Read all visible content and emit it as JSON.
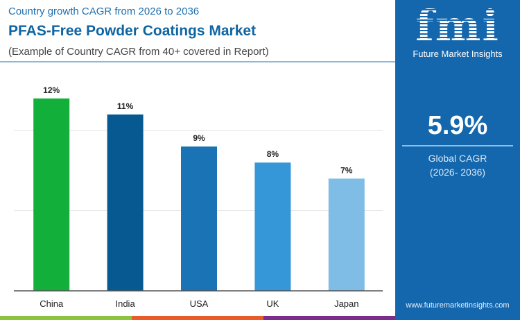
{
  "header": {
    "subtitle": "Country growth CAGR from 2026 to 2036",
    "title": "PFAS-Free Powder Coatings Market",
    "note": "(Example of Country CAGR from 40+ covered in Report)"
  },
  "panel": {
    "logo_text": "fmi",
    "brand": "Future Market Insights",
    "global_value": "5.9%",
    "global_label": "Global CAGR",
    "global_period": "(2026- 2036)",
    "url": "www.futuremarketinsights.com",
    "background": "#1467ad"
  },
  "chart_data": {
    "type": "bar",
    "categories": [
      "China",
      "India",
      "USA",
      "UK",
      "Japan"
    ],
    "values": [
      12,
      11,
      9,
      8,
      7
    ],
    "labels": [
      "12%",
      "11%",
      "9%",
      "8%",
      "7%"
    ],
    "colors": [
      "#12b03a",
      "#065a91",
      "#1a73b4",
      "#3597d8",
      "#7fbde6"
    ],
    "ylim": [
      0,
      14
    ],
    "grid": true,
    "gridlines": [
      5,
      10
    ],
    "unit": "%"
  },
  "strip_colors": [
    "#8cc43f",
    "#e85b2a",
    "#7b2d8a"
  ]
}
